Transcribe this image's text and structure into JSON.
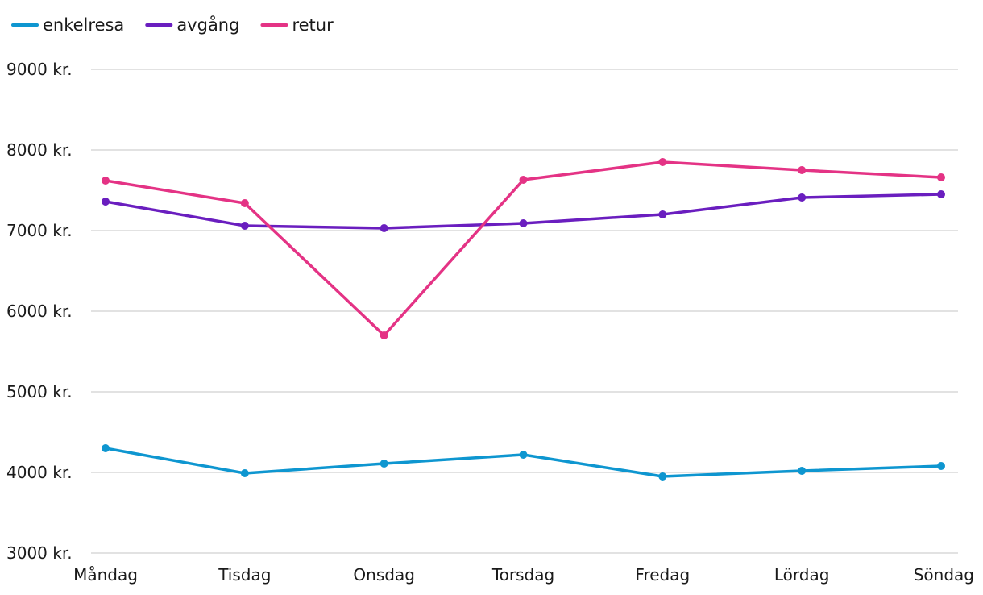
{
  "chart_data": {
    "type": "line",
    "categories": [
      "Måndag",
      "Tisdag",
      "Onsdag",
      "Torsdag",
      "Fredag",
      "Lördag",
      "Söndag"
    ],
    "series": [
      {
        "name": "enkelresa",
        "color": "#0e96d0",
        "values": [
          4300,
          3990,
          4110,
          4220,
          3950,
          4020,
          4080
        ]
      },
      {
        "name": "avgång",
        "color": "#6a1ebf",
        "values": [
          7360,
          7060,
          7030,
          7090,
          7200,
          7410,
          7450
        ]
      },
      {
        "name": "retur",
        "color": "#e43385",
        "values": [
          7620,
          7340,
          5700,
          7630,
          7850,
          7750,
          7660
        ]
      }
    ],
    "ylim": [
      3000,
      9000
    ],
    "yticks": [
      3000,
      4000,
      5000,
      6000,
      7000,
      8000,
      9000
    ],
    "ytick_labels": [
      "3000 kr.",
      "4000 kr.",
      "5000 kr.",
      "6000 kr.",
      "7000 kr.",
      "8000 kr.",
      "9000 kr."
    ],
    "grid": true,
    "legend_position": "top-left",
    "title": "",
    "xlabel": "",
    "ylabel": ""
  }
}
